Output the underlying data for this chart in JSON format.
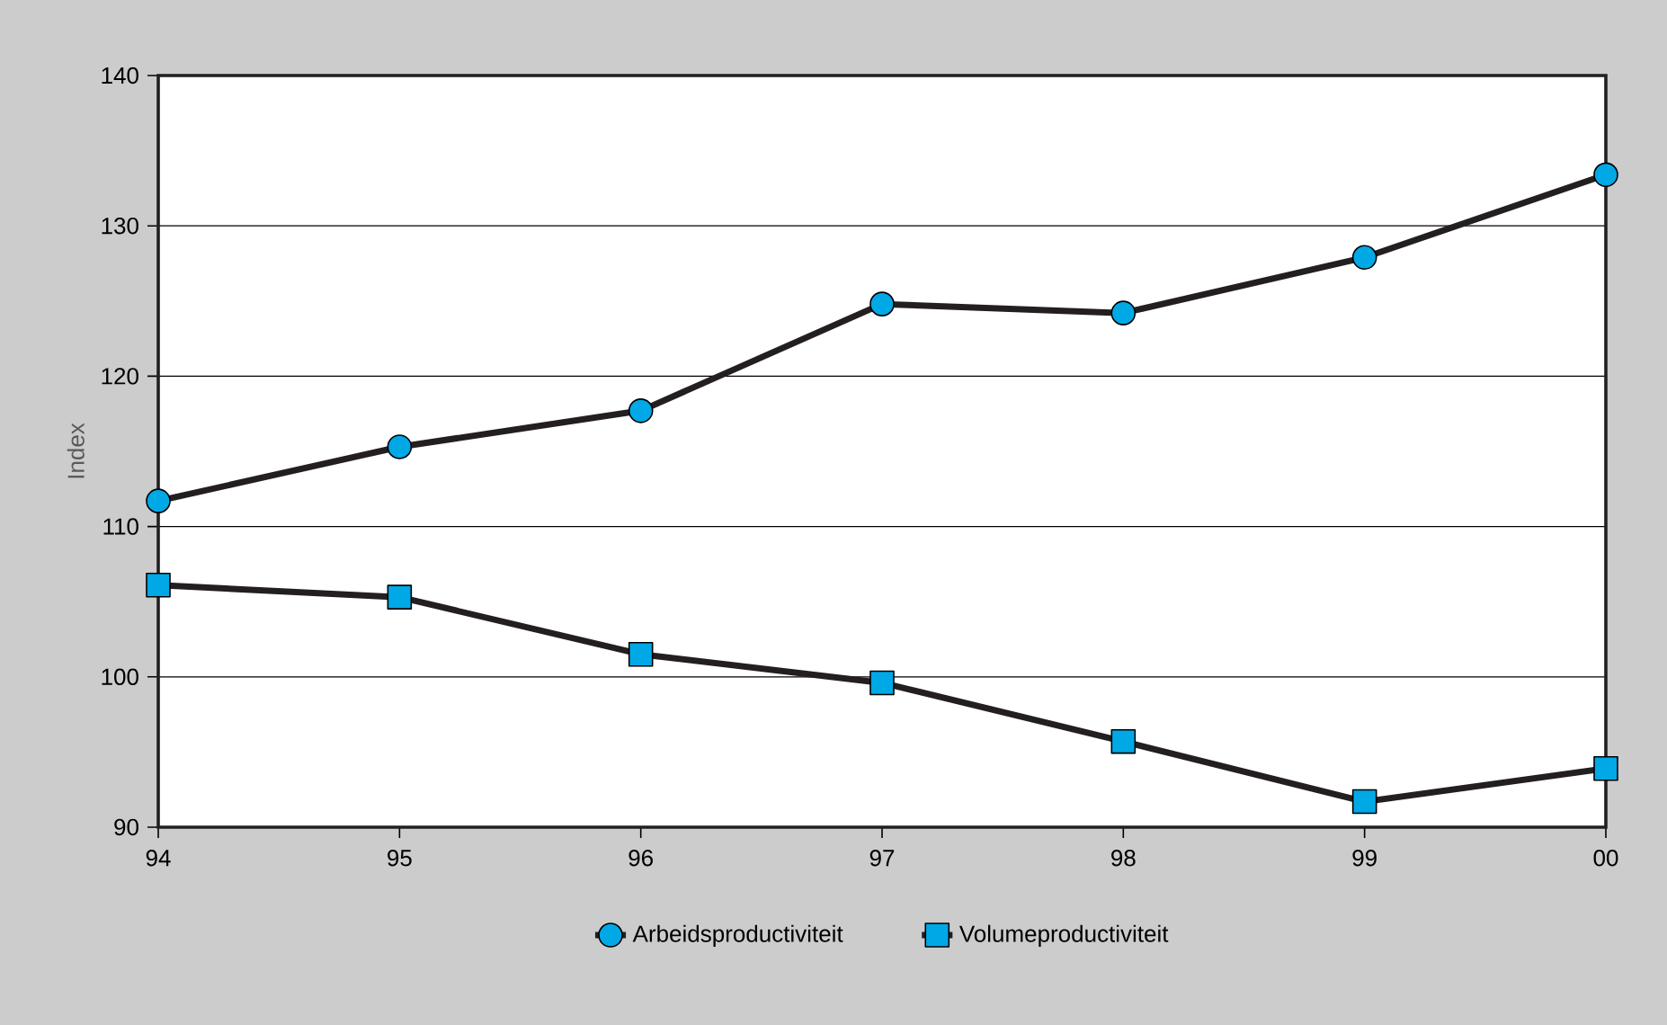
{
  "chart_data": {
    "type": "line",
    "ylabel": "Index",
    "categories": [
      "94",
      "95",
      "96",
      "97",
      "98",
      "99",
      "00"
    ],
    "series": [
      {
        "name": "Arbeidsproductiviteit",
        "color": "#00a9e6",
        "marker": "circle",
        "values": [
          111.7,
          115.3,
          117.7,
          124.8,
          124.2,
          127.9,
          133.4
        ]
      },
      {
        "name": "Volumeproductiviteit",
        "color": "#00a9e6",
        "marker": "square",
        "values": [
          106.1,
          105.3,
          101.5,
          99.6,
          95.7,
          91.7,
          93.9
        ]
      }
    ],
    "ylim": [
      90,
      140
    ],
    "yticks": [
      90,
      100,
      110,
      120,
      130,
      140
    ],
    "grid": "y",
    "legend": "bottom",
    "line_style": "solid"
  }
}
